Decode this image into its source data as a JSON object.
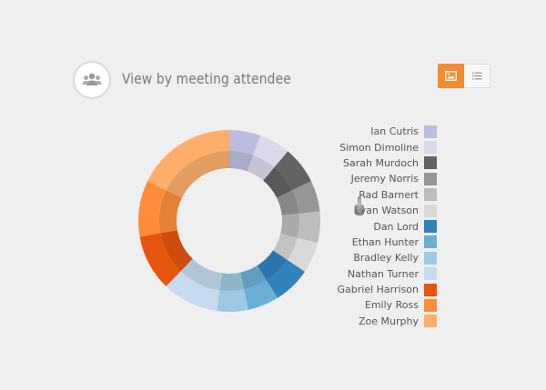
{
  "header": {
    "title": "View by meeting attendee",
    "icon": "people-group-icon"
  },
  "view_toggle": {
    "active": "chart-view",
    "options": [
      "chart-view-icon",
      "list-view-icon"
    ],
    "accent_color": "#f28c32"
  },
  "chart_data": {
    "type": "donut",
    "inner_ring": "darker shade of each attendee color",
    "segments": [
      {
        "name": "Ian Cutris",
        "value": 5,
        "color": "#bcbddc"
      },
      {
        "name": "Simon Dimoline",
        "value": 5,
        "color": "#dadaeb"
      },
      {
        "name": "Sarah Murdoch",
        "value": 6,
        "color": "#636363"
      },
      {
        "name": "Jeremy Norris",
        "value": 5,
        "color": "#969696"
      },
      {
        "name": "Rad Barnert",
        "value": 5,
        "color": "#bdbdbd"
      },
      {
        "name": "Evan Watson",
        "value": 5,
        "color": "#d9d9d9"
      },
      {
        "name": "Dan Lord",
        "value": 6,
        "color": "#3182bd"
      },
      {
        "name": "Ethan Hunter",
        "value": 5,
        "color": "#6baed6"
      },
      {
        "name": "Bradley Kelly",
        "value": 5,
        "color": "#9ecae1"
      },
      {
        "name": "Nathan Turner",
        "value": 9,
        "color": "#c6dbef"
      },
      {
        "name": "Gabriel Harrison",
        "value": 9,
        "color": "#e6550d"
      },
      {
        "name": "Emily Ross",
        "value": 9,
        "color": "#fd8d3c"
      },
      {
        "name": "Zoe Murphy",
        "value": 16,
        "color": "#fdae6b"
      }
    ]
  }
}
